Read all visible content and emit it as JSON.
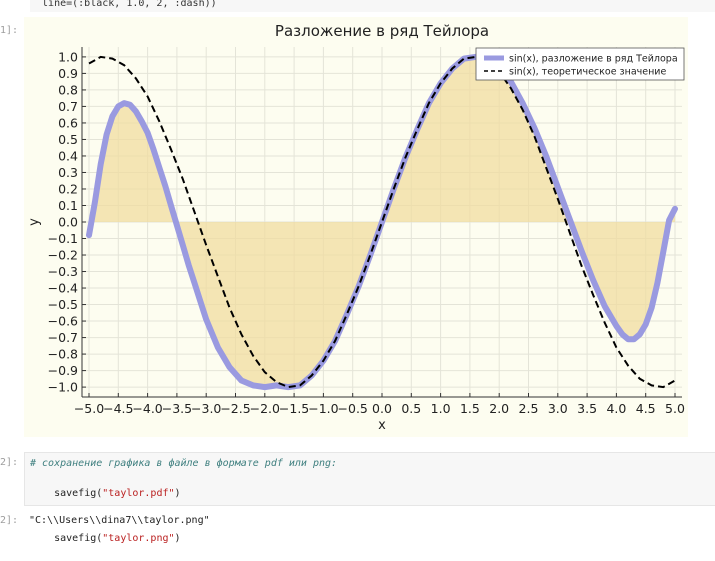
{
  "top_cell": {
    "code": "  line=(:black, 1.0, 2, :dash))"
  },
  "prompts": {
    "plot": "1]:",
    "save": "2]:",
    "out": "2]:"
  },
  "chart_data": {
    "type": "line",
    "title": "Разложение в ряд Тейлора",
    "xlabel": "x",
    "ylabel": "y",
    "xlim": [
      -5.0,
      5.0
    ],
    "ylim": [
      -1.0,
      1.0
    ],
    "xticks": [
      "−5.0",
      "−4.5",
      "−4.0",
      "−3.5",
      "−3.0",
      "−2.5",
      "−2.0",
      "−1.5",
      "−1.0",
      "−0.5",
      "0.0",
      "0.5",
      "1.0",
      "1.5",
      "2.0",
      "2.5",
      "3.0",
      "3.5",
      "4.0",
      "4.5",
      "5.0"
    ],
    "yticks": [
      "1.0",
      "0.9",
      "0.8",
      "0.7",
      "0.6",
      "0.5",
      "0.4",
      "0.3",
      "0.2",
      "0.1",
      "0.0",
      "−0.1",
      "−0.2",
      "−0.3",
      "−0.4",
      "−0.5",
      "−0.6",
      "−0.7",
      "−0.8",
      "−0.9",
      "−1.0"
    ],
    "grid": true,
    "legend_position": "top-right",
    "series": [
      {
        "name": "sin(x), разложение в ряд Тейлора",
        "color": "#9a9ae0",
        "fill_color": "#f0dca0",
        "points": [
          [
            -5.0,
            -0.08
          ],
          [
            -4.9,
            0.12
          ],
          [
            -4.8,
            0.35
          ],
          [
            -4.7,
            0.53
          ],
          [
            -4.6,
            0.64
          ],
          [
            -4.5,
            0.7
          ],
          [
            -4.4,
            0.72
          ],
          [
            -4.3,
            0.71
          ],
          [
            -4.2,
            0.67
          ],
          [
            -4.1,
            0.61
          ],
          [
            -4.0,
            0.54
          ],
          [
            -3.9,
            0.44
          ],
          [
            -3.8,
            0.33
          ],
          [
            -3.7,
            0.22
          ],
          [
            -3.6,
            0.1
          ],
          [
            -3.5,
            -0.02
          ],
          [
            -3.4,
            -0.14
          ],
          [
            -3.3,
            -0.26
          ],
          [
            -3.2,
            -0.37
          ],
          [
            -3.1,
            -0.48
          ],
          [
            -3.0,
            -0.59
          ],
          [
            -2.8,
            -0.76
          ],
          [
            -2.6,
            -0.88
          ],
          [
            -2.4,
            -0.96
          ],
          [
            -2.2,
            -0.99
          ],
          [
            -2.0,
            -1.0
          ],
          [
            -1.8,
            -0.99
          ],
          [
            -1.6,
            -1.0
          ],
          [
            -1.4,
            -0.99
          ],
          [
            -1.2,
            -0.93
          ],
          [
            -1.0,
            -0.84
          ],
          [
            -0.8,
            -0.72
          ],
          [
            -0.6,
            -0.56
          ],
          [
            -0.4,
            -0.39
          ],
          [
            -0.2,
            -0.2
          ],
          [
            0.0,
            0.0
          ],
          [
            0.2,
            0.2
          ],
          [
            0.4,
            0.39
          ],
          [
            0.6,
            0.56
          ],
          [
            0.8,
            0.72
          ],
          [
            1.0,
            0.84
          ],
          [
            1.2,
            0.93
          ],
          [
            1.4,
            0.99
          ],
          [
            1.6,
            1.0
          ],
          [
            1.8,
            0.99
          ],
          [
            2.0,
            0.94
          ],
          [
            2.2,
            0.85
          ],
          [
            2.4,
            0.72
          ],
          [
            2.6,
            0.57
          ],
          [
            2.8,
            0.4
          ],
          [
            3.0,
            0.21
          ],
          [
            3.2,
            0.02
          ],
          [
            3.4,
            -0.17
          ],
          [
            3.6,
            -0.35
          ],
          [
            3.8,
            -0.51
          ],
          [
            4.0,
            -0.63
          ],
          [
            4.1,
            -0.68
          ],
          [
            4.2,
            -0.71
          ],
          [
            4.3,
            -0.71
          ],
          [
            4.4,
            -0.68
          ],
          [
            4.5,
            -0.62
          ],
          [
            4.6,
            -0.52
          ],
          [
            4.7,
            -0.37
          ],
          [
            4.8,
            -0.18
          ],
          [
            4.9,
            0.01
          ],
          [
            5.0,
            0.08
          ]
        ]
      },
      {
        "name": "sin(x), теоретическое значение",
        "color": "#000000",
        "points": [
          [
            -5.0,
            0.96
          ],
          [
            -4.9,
            0.98
          ],
          [
            -4.8,
            1.0
          ],
          [
            -4.6,
            0.99
          ],
          [
            -4.4,
            0.95
          ],
          [
            -4.2,
            0.87
          ],
          [
            -4.0,
            0.76
          ],
          [
            -3.8,
            0.61
          ],
          [
            -3.6,
            0.44
          ],
          [
            -3.4,
            0.26
          ],
          [
            -3.2,
            0.06
          ],
          [
            -3.0,
            -0.14
          ],
          [
            -2.8,
            -0.33
          ],
          [
            -2.6,
            -0.52
          ],
          [
            -2.4,
            -0.68
          ],
          [
            -2.2,
            -0.81
          ],
          [
            -2.0,
            -0.91
          ],
          [
            -1.8,
            -0.97
          ],
          [
            -1.6,
            -1.0
          ],
          [
            -1.4,
            -0.99
          ],
          [
            -1.2,
            -0.93
          ],
          [
            -1.0,
            -0.84
          ],
          [
            -0.8,
            -0.72
          ],
          [
            -0.6,
            -0.56
          ],
          [
            -0.4,
            -0.39
          ],
          [
            -0.2,
            -0.2
          ],
          [
            0.0,
            0.0
          ],
          [
            0.2,
            0.2
          ],
          [
            0.4,
            0.39
          ],
          [
            0.6,
            0.56
          ],
          [
            0.8,
            0.72
          ],
          [
            1.0,
            0.84
          ],
          [
            1.2,
            0.93
          ],
          [
            1.4,
            0.99
          ],
          [
            1.6,
            1.0
          ],
          [
            1.8,
            0.97
          ],
          [
            2.0,
            0.91
          ],
          [
            2.2,
            0.81
          ],
          [
            2.4,
            0.68
          ],
          [
            2.6,
            0.52
          ],
          [
            2.8,
            0.33
          ],
          [
            3.0,
            0.14
          ],
          [
            3.2,
            -0.06
          ],
          [
            3.4,
            -0.26
          ],
          [
            3.6,
            -0.44
          ],
          [
            3.8,
            -0.61
          ],
          [
            4.0,
            -0.76
          ],
          [
            4.2,
            -0.87
          ],
          [
            4.4,
            -0.95
          ],
          [
            4.6,
            -0.99
          ],
          [
            4.8,
            -1.0
          ],
          [
            5.0,
            -0.96
          ]
        ]
      }
    ]
  },
  "save_cell": {
    "comment": "# сохранение графика в файле в формате pdf или png:",
    "lines": [
      {
        "fn": "savefig(",
        "arg": "\"taylor.pdf\"",
        "close": ")"
      },
      {
        "fn": "savefig(",
        "arg": "\"taylor.png\"",
        "close": ")"
      }
    ]
  },
  "output": {
    "text": "\"C:\\\\Users\\\\dina7\\\\taylor.png\""
  }
}
